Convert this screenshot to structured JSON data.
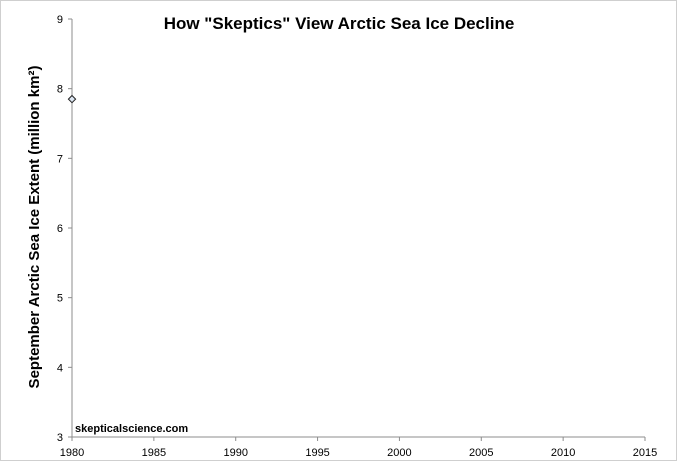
{
  "chart_data": {
    "type": "scatter",
    "title": "How \"Skeptics\" View Arctic Sea Ice Decline",
    "xlabel": "",
    "ylabel": "September Arctic Sea Ice Extent (million km²)",
    "xlim": [
      1980,
      2015
    ],
    "ylim": [
      3,
      9
    ],
    "x_ticks": [
      1980,
      1985,
      1990,
      1995,
      2000,
      2005,
      2010,
      2015
    ],
    "y_ticks": [
      3,
      4,
      5,
      6,
      7,
      8,
      9
    ],
    "grid": false,
    "series": [
      {
        "x": [
          1980
        ],
        "y": [
          7.85
        ],
        "marker": "diamond",
        "color": "#dce6f2",
        "edge_color": "#1f1f1f"
      }
    ],
    "annotations": [
      {
        "text": "skepticalscience.com"
      }
    ]
  }
}
